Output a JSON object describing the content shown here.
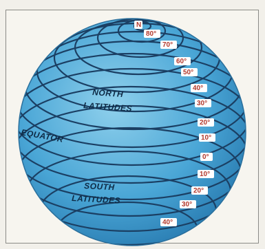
{
  "labels": {
    "north": [
      "NORTH",
      "LATITUDES"
    ],
    "equator": "EQUATOR",
    "south": [
      "SOUTH",
      "LATITUDES"
    ]
  },
  "latitudes": [
    "N",
    "80°",
    "70°",
    "60°",
    "50°",
    "40°",
    "30°",
    "20°",
    "10°",
    "0°",
    "10°",
    "20°",
    "30°",
    "40°"
  ],
  "colors": {
    "sphere_light": "#8fd0ec",
    "sphere_mid": "#4aa6d6",
    "sphere_dark": "#1f6fa6",
    "lines": "#1b3f63",
    "label_text": "#0e2a45",
    "number_text": "#b23a2e"
  }
}
